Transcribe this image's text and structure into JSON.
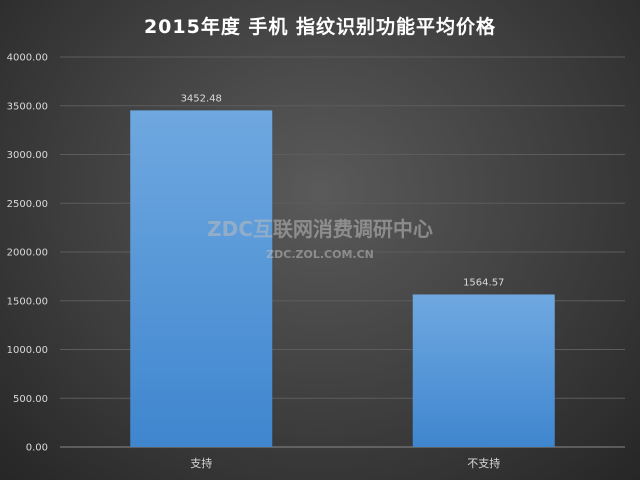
{
  "chart_data": {
    "type": "bar",
    "title": "2015年度 手机 指纹识别功能平均价格",
    "categories": [
      "支持",
      "不支持"
    ],
    "values": [
      3452.48,
      1564.57
    ],
    "value_labels": [
      "3452.48",
      "1564.57"
    ],
    "ylim": [
      0,
      4000
    ],
    "yticks": [
      "0.00",
      "500.00",
      "1000.00",
      "1500.00",
      "2000.00",
      "2500.00",
      "3000.00",
      "3500.00",
      "4000.00"
    ],
    "grid": true,
    "legend": "none",
    "xlabel": "",
    "ylabel": "",
    "bar_color_top": "#6fa8e0",
    "bar_color_bottom": "#3f86cf"
  },
  "watermark": {
    "main": "ZDC互联网消费调研中心",
    "sub": "ZDC.ZOL.COM.CN"
  }
}
